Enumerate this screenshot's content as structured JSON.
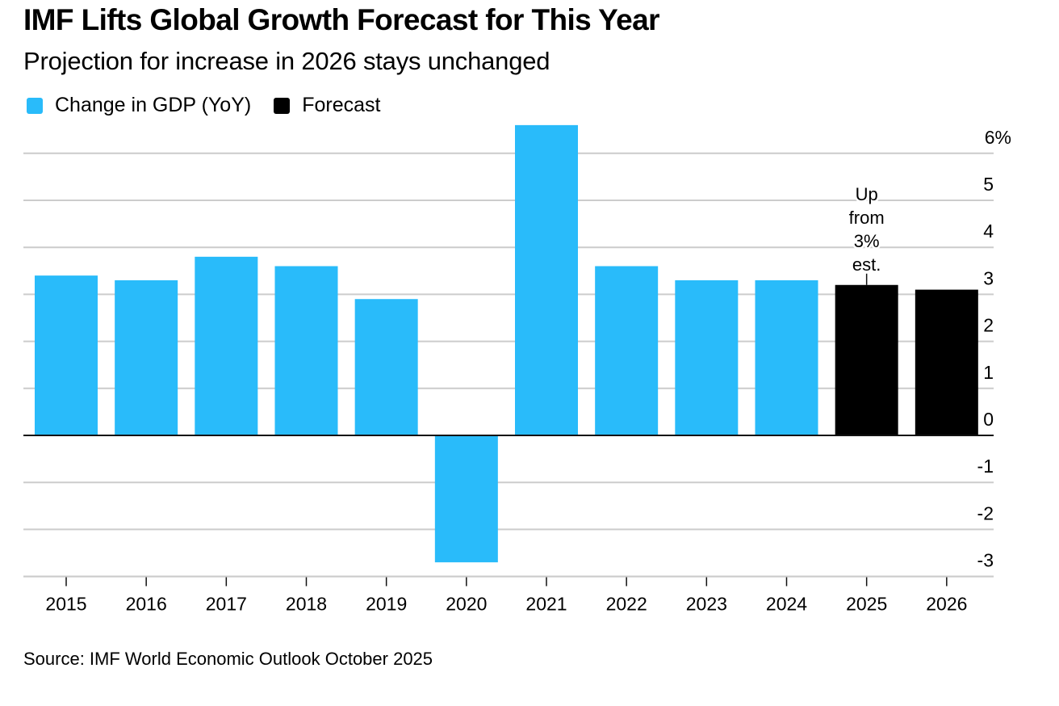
{
  "header": {
    "title": "IMF Lifts Global Growth Forecast for This Year",
    "subtitle": "Projection for increase in 2026 stays unchanged"
  },
  "legend": [
    {
      "label": "Change in GDP (YoY)",
      "color": "#29bbfa"
    },
    {
      "label": "Forecast",
      "color": "#000000"
    }
  ],
  "source": "Source: IMF World Economic Outlook October 2025",
  "chart_data": {
    "type": "bar",
    "title": "IMF Lifts Global Growth Forecast for This Year",
    "subtitle": "Projection for increase in 2026 stays unchanged",
    "xlabel": "",
    "ylabel": "",
    "categories": [
      "2015",
      "2016",
      "2017",
      "2018",
      "2019",
      "2020",
      "2021",
      "2022",
      "2023",
      "2024",
      "2025",
      "2026"
    ],
    "series": [
      {
        "name": "Change in GDP (YoY)",
        "color": "#29bbfa",
        "values": [
          3.4,
          3.3,
          3.8,
          3.6,
          2.9,
          -2.7,
          6.6,
          3.6,
          3.3,
          3.3,
          null,
          null
        ]
      },
      {
        "name": "Forecast",
        "color": "#000000",
        "values": [
          null,
          null,
          null,
          null,
          null,
          null,
          null,
          null,
          null,
          null,
          3.2,
          3.1
        ]
      }
    ],
    "ylim": [
      -3,
      6
    ],
    "yticks": [
      6,
      5,
      4,
      3,
      2,
      1,
      0,
      -1,
      -2,
      -3
    ],
    "ytick_labels": [
      "6%",
      "5",
      "4",
      "3",
      "2",
      "1",
      "0",
      "-1",
      "-2",
      "-3"
    ],
    "y_axis_side": "right",
    "grid": true,
    "legend_position": "top-left",
    "annotations": [
      {
        "category": "2025",
        "lines": [
          "Up",
          "from",
          "3%",
          "est."
        ]
      }
    ]
  }
}
